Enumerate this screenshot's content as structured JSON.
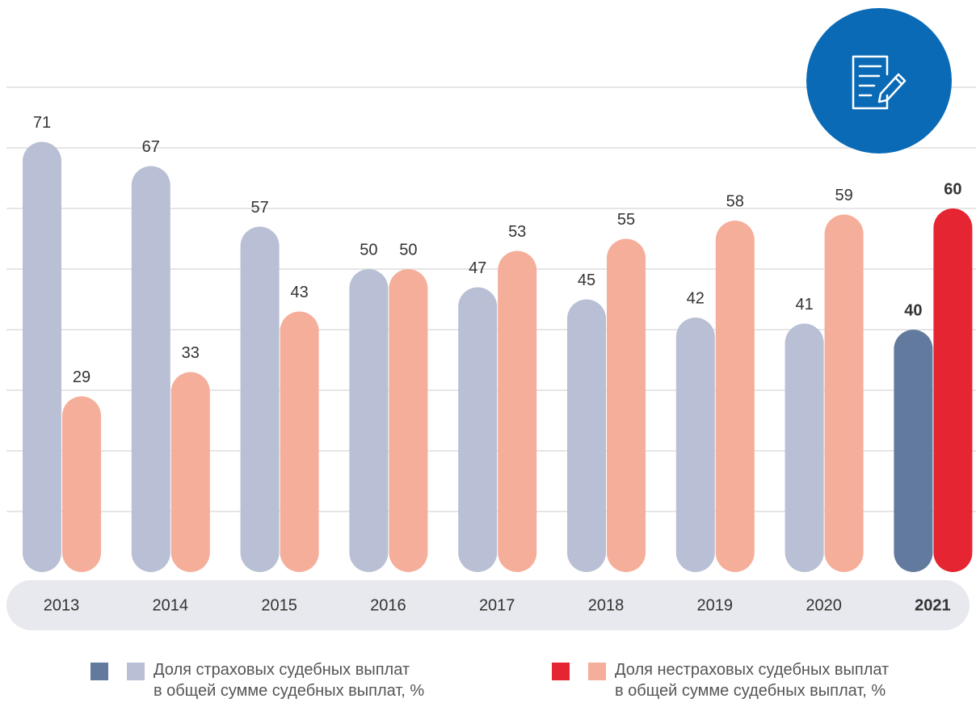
{
  "chart_data": {
    "type": "bar",
    "categories": [
      "2013",
      "2014",
      "2015",
      "2016",
      "2017",
      "2018",
      "2019",
      "2020",
      "2021"
    ],
    "highlight": "2021",
    "series": [
      {
        "name": "Доля страховых судебных выплат\nв общей сумме судебных выплат, %",
        "color": "#b9bfd4",
        "highlight_color": "#627a9e",
        "values": [
          71,
          67,
          57,
          50,
          47,
          45,
          42,
          41,
          40
        ]
      },
      {
        "name": "Доля нестраховых судебных выплат\nв общей сумме судебных выплат, %",
        "color": "#f5ae9a",
        "highlight_color": "#e52531",
        "values": [
          29,
          33,
          43,
          50,
          53,
          55,
          58,
          59,
          60
        ]
      }
    ],
    "ylim": [
      0,
      80
    ],
    "yticks": [
      10,
      20,
      30,
      40,
      50,
      60,
      70,
      80
    ],
    "grid": true
  }
}
